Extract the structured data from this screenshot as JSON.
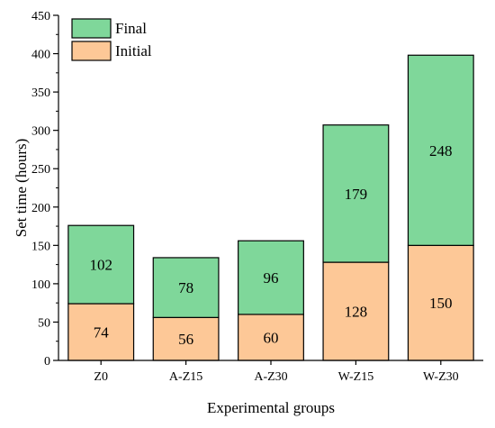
{
  "chart_data": {
    "type": "bar",
    "stacked": true,
    "xlabel": "Experimental groups",
    "ylabel": "Set time (hours)",
    "categories": [
      "Z0",
      "A-Z15",
      "A-Z30",
      "W-Z15",
      "W-Z30"
    ],
    "ylim": [
      0,
      450
    ],
    "yticks": [
      0,
      50,
      100,
      150,
      200,
      250,
      300,
      350,
      400,
      450
    ],
    "grid": false,
    "legend_position": "top-left",
    "series": [
      {
        "name": "Initial",
        "values": [
          74,
          56,
          60,
          128,
          150
        ],
        "color": "#fdc897"
      },
      {
        "name": "Final",
        "values": [
          102,
          78,
          96,
          179,
          248
        ],
        "color": "#7fd79a"
      }
    ],
    "legend_order": [
      "Final",
      "Initial"
    ]
  }
}
